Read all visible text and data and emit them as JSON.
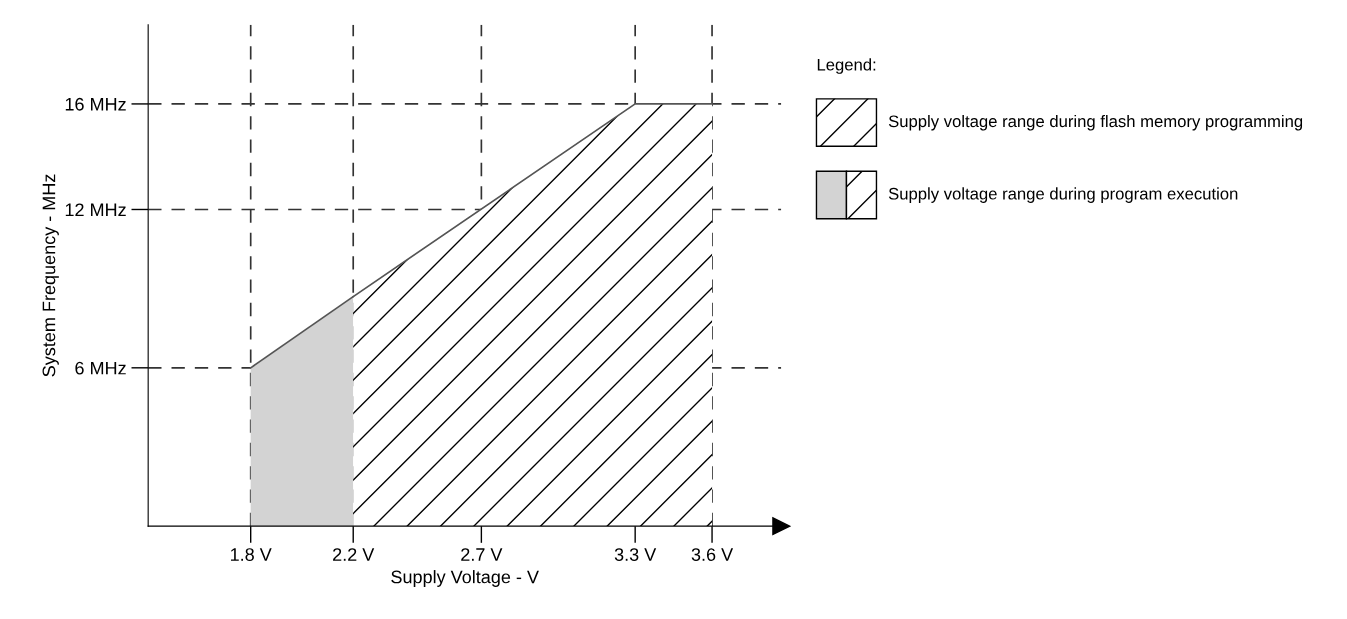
{
  "chart_data": {
    "type": "area",
    "xlabel": "Supply Voltage - V",
    "ylabel": "System Frequency - MHz",
    "legend_title": "Legend:",
    "xlim": [
      1.4,
      3.87
    ],
    "ylim": [
      0,
      19
    ],
    "xticks": [
      {
        "value": 1.8,
        "label": "1.8 V"
      },
      {
        "value": 2.2,
        "label": "2.2 V"
      },
      {
        "value": 2.7,
        "label": "2.7 V"
      },
      {
        "value": 3.3,
        "label": "3.3 V"
      },
      {
        "value": 3.6,
        "label": "3.6 V"
      }
    ],
    "yticks": [
      {
        "value": 6,
        "label": "6 MHz"
      },
      {
        "value": 12,
        "label": "12 MHz"
      },
      {
        "value": 16,
        "label": "16 MHz"
      }
    ],
    "grid": true,
    "line_style": "dashed",
    "legend": "right",
    "series": [
      {
        "name": "Supply voltage range during program execution",
        "color": "#d3d3d3",
        "x": [
          1.8,
          2.2
        ],
        "values": [
          6,
          8.7
        ]
      },
      {
        "name": "Supply voltage range during flash memory programming",
        "color": "#000000",
        "x": [
          2.2,
          3.3,
          3.6
        ],
        "values": [
          8.7,
          16,
          16
        ]
      }
    ]
  }
}
